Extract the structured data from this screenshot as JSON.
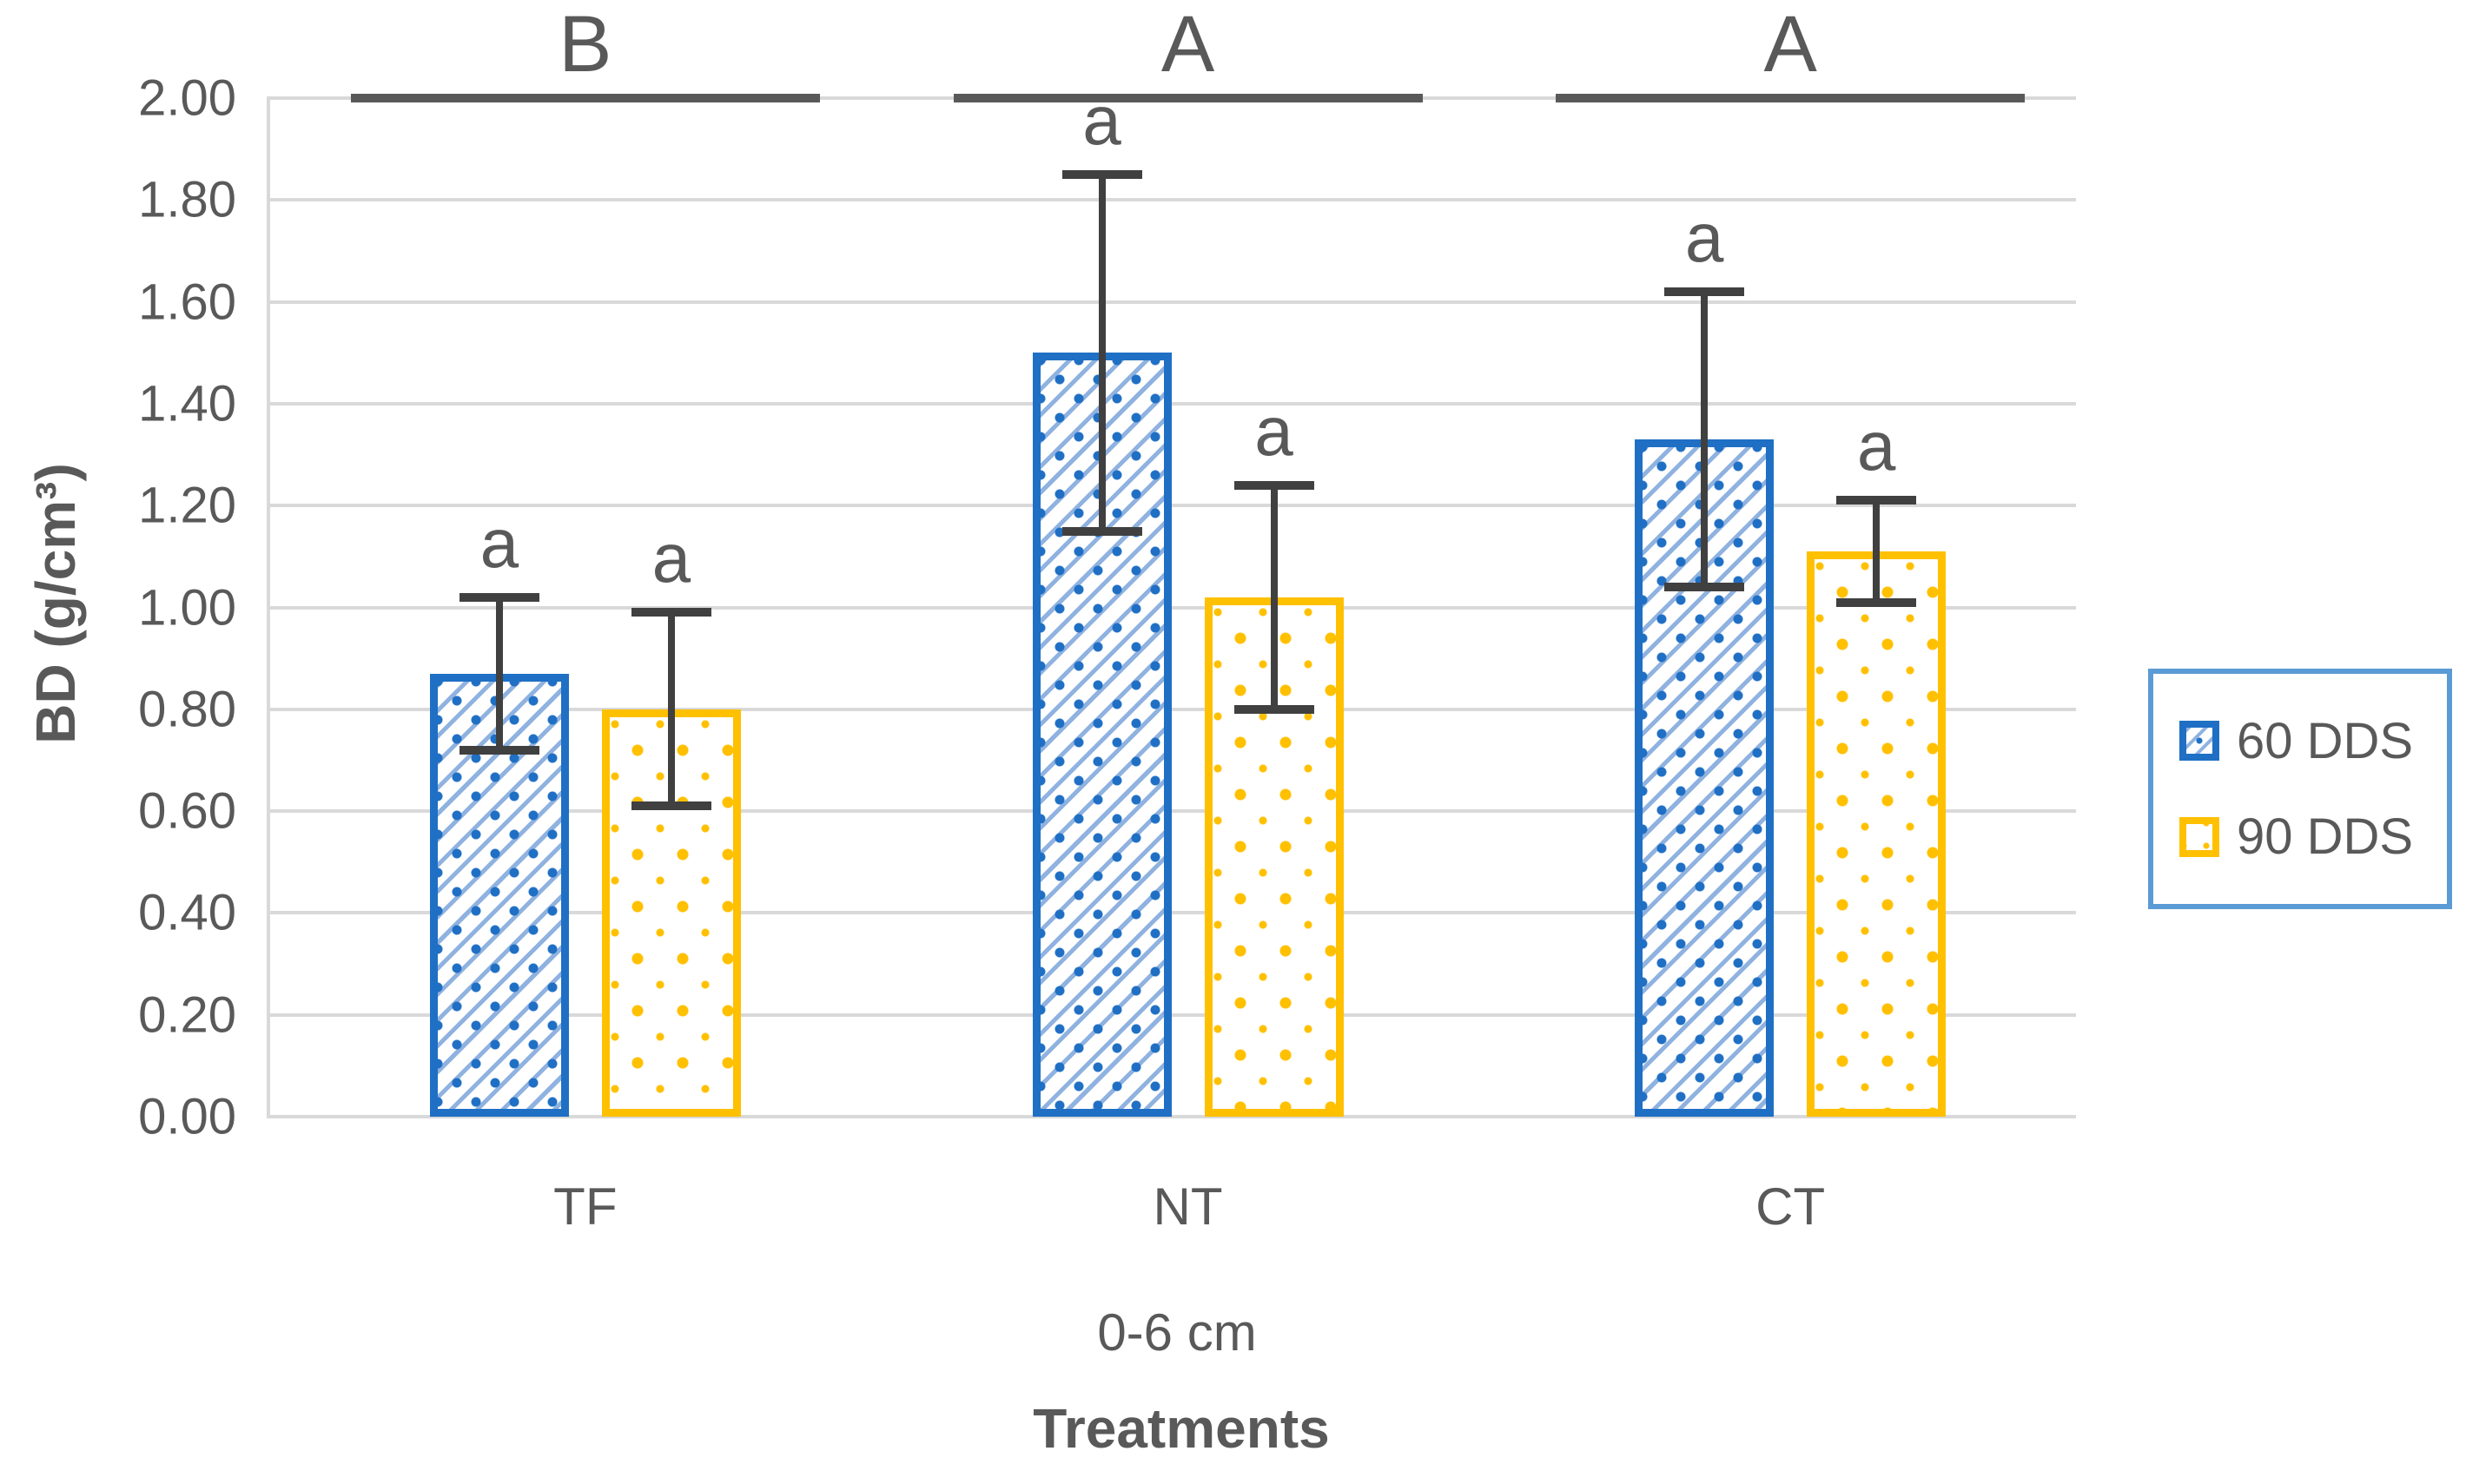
{
  "colors": {
    "series_blue": "#1F6FC4",
    "series_blue_light": "#8FB2E0",
    "series_yellow": "#FFC000",
    "gridline": "#D9D9D9",
    "axis_text": "#595959",
    "error_bar": "#404040",
    "group_line": "#595959",
    "legend_border": "#5B9BD5",
    "background": "#FFFFFF"
  },
  "chart_data": {
    "type": "bar",
    "title": "",
    "categories": [
      "TF",
      "NT",
      "CT"
    ],
    "series": [
      {
        "name": "60 DDS",
        "pattern": "diagonal-hatch",
        "color": "#1F6FC4",
        "values": [
          0.87,
          1.5,
          1.33
        ],
        "error": [
          0.15,
          0.35,
          0.29
        ],
        "bar_labels": [
          "a",
          "a",
          "a"
        ]
      },
      {
        "name": "90 DDS",
        "pattern": "dots",
        "color": "#FFC000",
        "values": [
          0.8,
          1.02,
          1.11
        ],
        "error": [
          0.19,
          0.22,
          0.1
        ],
        "bar_labels": [
          "a",
          "a",
          "a"
        ]
      }
    ],
    "group_significance_labels": [
      "B",
      "A",
      "A"
    ],
    "ylabel": "BD (g/cm³)",
    "xlabel": "Treatments",
    "x_sub_label": "0-6 cm",
    "ylim": [
      0.0,
      2.0
    ],
    "ytick_step": 0.2,
    "ytick_labels": [
      "0.00",
      "0.20",
      "0.40",
      "0.60",
      "0.80",
      "1.00",
      "1.20",
      "1.40",
      "1.60",
      "1.80",
      "2.00"
    ],
    "grid": true,
    "legend": {
      "position": "right",
      "entries": [
        "60 DDS",
        "90 DDS"
      ]
    }
  }
}
